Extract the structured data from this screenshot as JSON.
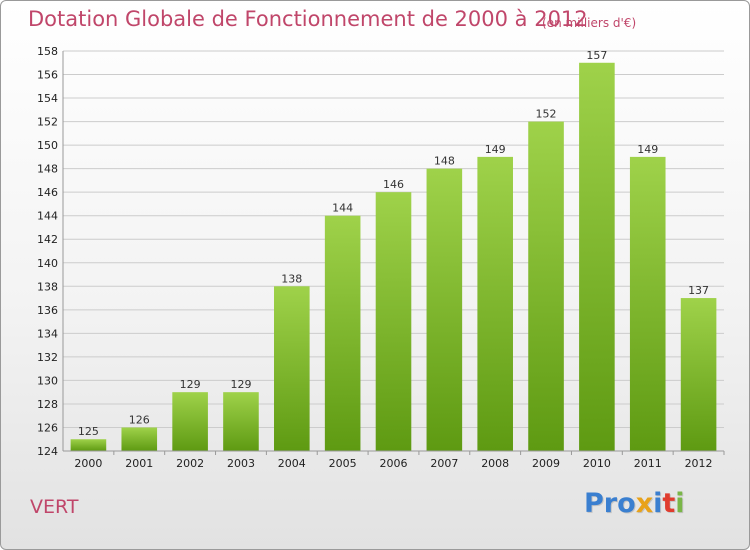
{
  "header": {
    "title": "Dotation Globale de Fonctionnement de 2000 à 2012",
    "unit_note": "(en milliers d'€)"
  },
  "footer": {
    "commune": "VERT",
    "brand_letters": [
      "P",
      "r",
      "o",
      "x",
      "i",
      "t",
      "i"
    ],
    "brand_colors": [
      "#3a7fd0",
      "#3a7fd0",
      "#3a7fd0",
      "#e8a21a",
      "#3a7fd0",
      "#e03c2e",
      "#7ab648"
    ]
  },
  "colors": {
    "title": "#c0466a",
    "bar_light": "#9fd24a",
    "bar_dark": "#5e9a12",
    "grid": "#cccccc",
    "axis": "#999999"
  },
  "chart_data": {
    "type": "bar",
    "title": "Dotation Globale de Fonctionnement de 2000 à 2012",
    "subtitle": "(en milliers d'€)",
    "xlabel": "",
    "ylabel": "",
    "categories": [
      "2000",
      "2001",
      "2002",
      "2003",
      "2004",
      "2005",
      "2006",
      "2007",
      "2008",
      "2009",
      "2010",
      "2011",
      "2012"
    ],
    "values": [
      125,
      126,
      129,
      129,
      138,
      144,
      146,
      148,
      149,
      152,
      157,
      149,
      137
    ],
    "ylim": [
      124,
      158
    ],
    "yticks": [
      124,
      126,
      128,
      130,
      132,
      134,
      136,
      138,
      140,
      142,
      144,
      146,
      148,
      150,
      152,
      154,
      156,
      158
    ],
    "grid": true,
    "legend": "none"
  }
}
